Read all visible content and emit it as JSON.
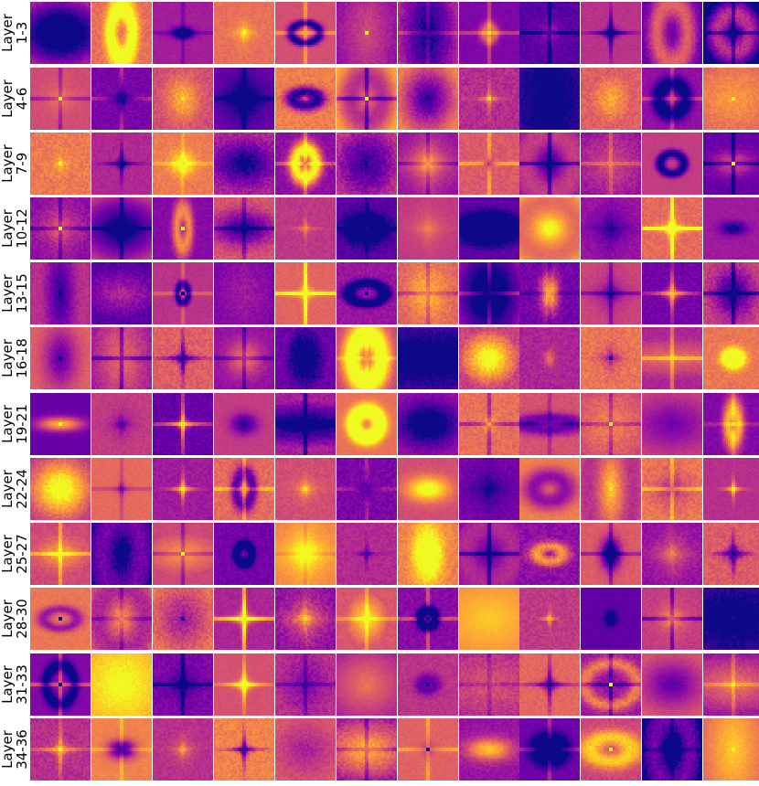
{
  "colormap": "plasma",
  "rows": [
    {
      "line1": "Layer",
      "line2": "1-3"
    },
    {
      "line1": "Layer",
      "line2": "4-6"
    },
    {
      "line1": "Layer",
      "line2": "7-9"
    },
    {
      "line1": "Layer",
      "line2": "10-12"
    },
    {
      "line1": "Layer",
      "line2": "13-15"
    },
    {
      "line1": "Layer",
      "line2": "16-18"
    },
    {
      "line1": "Layer",
      "line2": "19-21"
    },
    {
      "line1": "Layer",
      "line2": "22-24"
    },
    {
      "line1": "Layer",
      "line2": "25-27"
    },
    {
      "line1": "Layer",
      "line2": "28-30"
    },
    {
      "line1": "Layer",
      "line2": "31-33"
    },
    {
      "line1": "Layer",
      "line2": "34-36"
    }
  ],
  "column_groups": 3,
  "panels_per_group": 4
}
